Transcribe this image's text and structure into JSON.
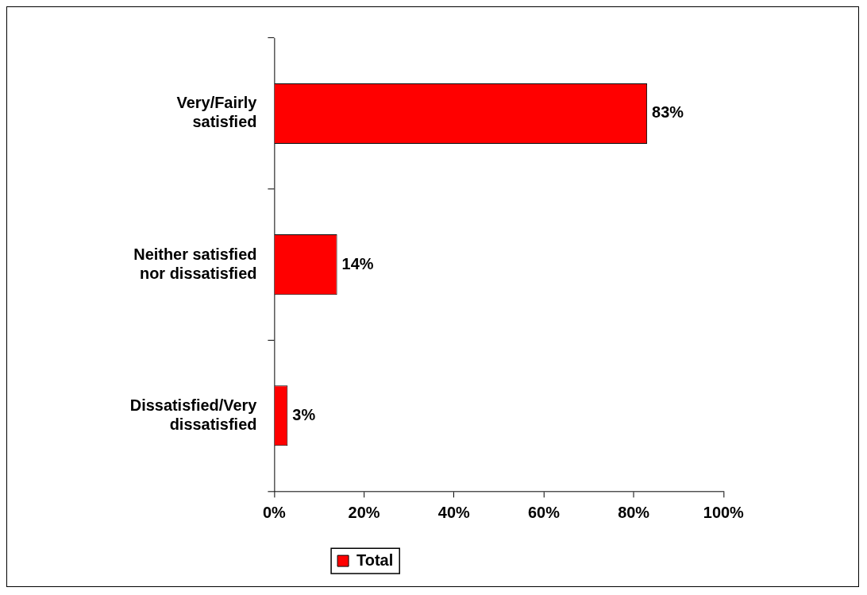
{
  "chart_data": {
    "type": "bar",
    "orientation": "horizontal",
    "categories": [
      "Very/Fairly satisfied",
      "Neither satisfied nor dissatisfied",
      "Dissatisfied/Very dissatisfied"
    ],
    "series": [
      {
        "name": "Total",
        "color": "#ff0000",
        "values": [
          83,
          14,
          3
        ],
        "value_labels": [
          "83%",
          "14%",
          "3%"
        ]
      }
    ],
    "xlim": [
      0,
      100
    ],
    "xticks": [
      {
        "value": 0,
        "label": "0%"
      },
      {
        "value": 20,
        "label": "20%"
      },
      {
        "value": 40,
        "label": "40%"
      },
      {
        "value": 60,
        "label": "60%"
      },
      {
        "value": 80,
        "label": "80%"
      },
      {
        "value": 100,
        "label": "100%"
      }
    ],
    "grid": false,
    "legend": "bottom"
  }
}
